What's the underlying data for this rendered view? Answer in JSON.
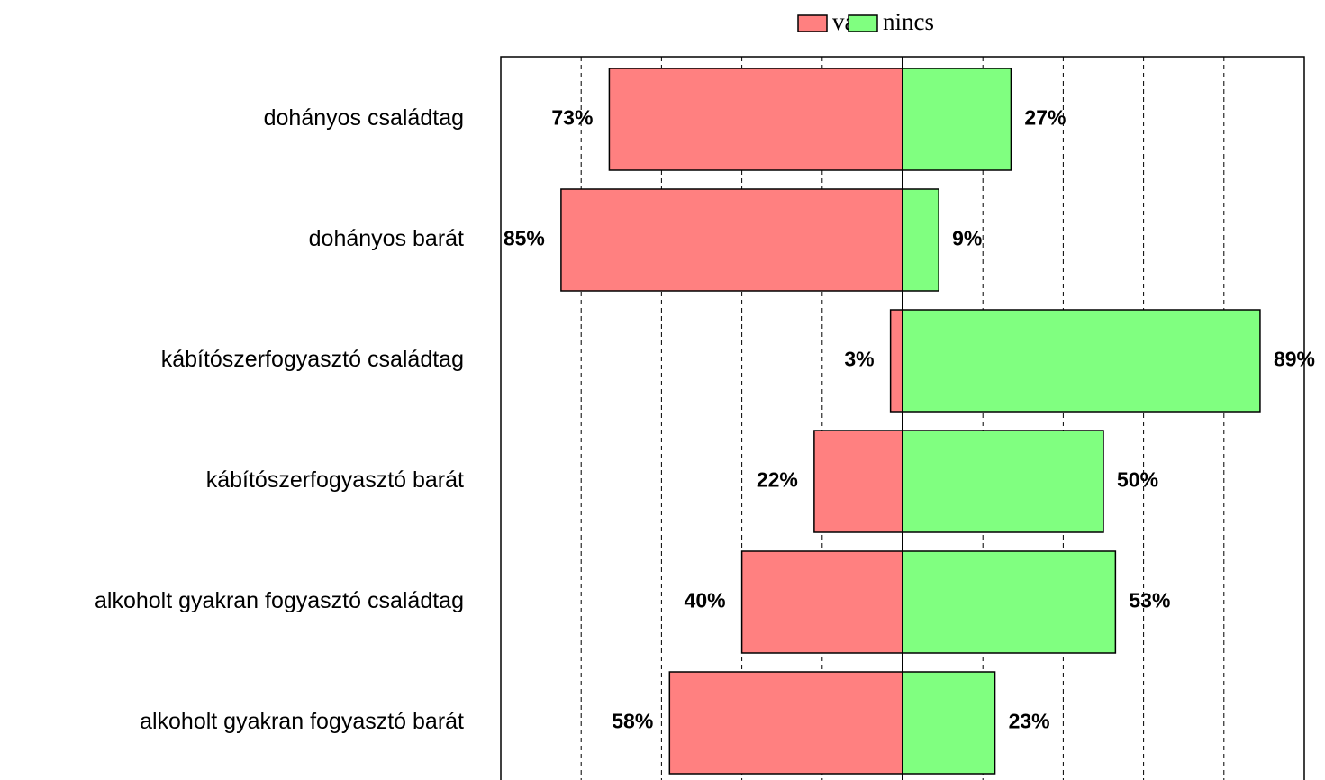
{
  "chart_data": {
    "type": "diverging_bar",
    "categories": [
      "dohányos családtag",
      "dohányos barát",
      "kábítószerfogyasztó családtag",
      "kábítószerfogyasztó barát",
      "alkoholt gyakran fogyasztó családtag",
      "alkoholt gyakran fogyasztó barát"
    ],
    "series": [
      {
        "name": "van",
        "color": "#ff8080",
        "values": [
          73,
          85,
          3,
          22,
          40,
          58
        ],
        "value_labels": [
          "73%",
          "85%",
          "3%",
          "22%",
          "40%",
          "58%"
        ]
      },
      {
        "name": "nincs",
        "color": "#80ff80",
        "values": [
          27,
          9,
          89,
          50,
          53,
          23
        ],
        "value_labels": [
          "27%",
          "9%",
          "89%",
          "50%",
          "53%",
          "23%"
        ]
      }
    ],
    "xlim": [
      -100,
      100
    ],
    "xticks": [
      -80,
      -60,
      -40,
      -20,
      20,
      40,
      60,
      80
    ],
    "grid": true,
    "legend": "top"
  }
}
